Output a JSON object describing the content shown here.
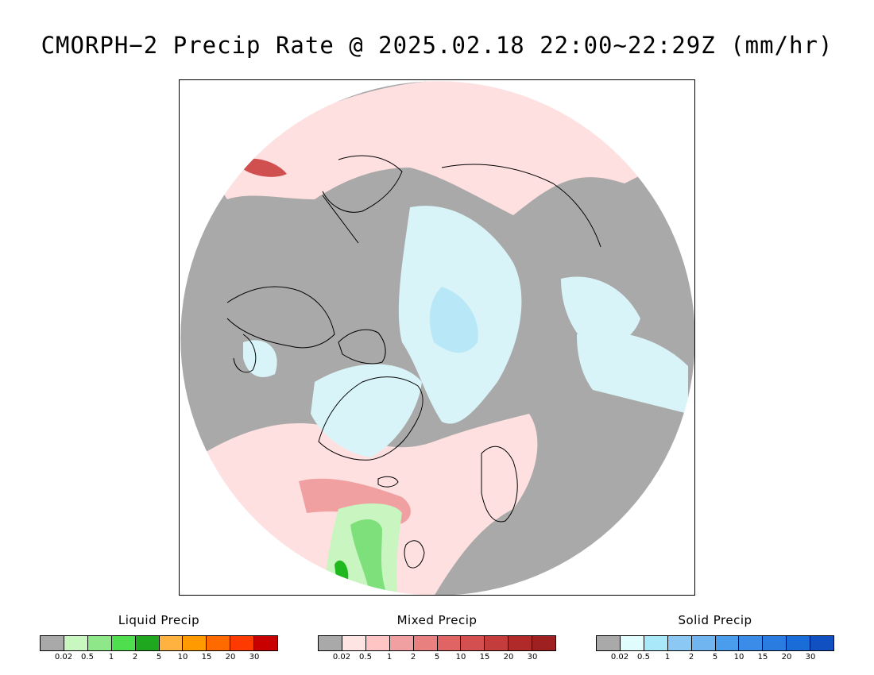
{
  "title": "CMORPH−2 Precip Rate @ 2025.02.18 22:00~22:29Z (mm/hr)",
  "map": {
    "projection": "north-polar-stereographic",
    "colors": {
      "no_precip": "#a9a9a9",
      "liquid_light": "#c8f5c0",
      "liquid_mid": "#7de07a",
      "liquid_heavy": "#1fb81f",
      "mixed_light": "#ffe0e0",
      "mixed_mid": "#f0a0a0",
      "mixed_heavy": "#d05050",
      "solid_light": "#d8f4f8",
      "solid_mid": "#b8e8f8",
      "coastline": "#000000"
    }
  },
  "legends": [
    {
      "label": "Liquid Precip",
      "colors": [
        "#a9a9a9",
        "#c8f7c0",
        "#8ee889",
        "#4ede4e",
        "#1fa81f",
        "#ffb23f",
        "#ff9a00",
        "#ff6a00",
        "#ff3a00",
        "#c80000"
      ],
      "ticks": [
        "0.02",
        "0.5",
        "1",
        "2",
        "5",
        "10",
        "15",
        "20",
        "30"
      ]
    },
    {
      "label": "Mixed Precip",
      "colors": [
        "#a9a9a9",
        "#ffe4e4",
        "#ffc4c4",
        "#f0a0a0",
        "#e88080",
        "#e06464",
        "#d45050",
        "#c43c3c",
        "#b02a2a",
        "#9e2020"
      ],
      "ticks": [
        "0.02",
        "0.5",
        "1",
        "2",
        "5",
        "10",
        "15",
        "20",
        "30"
      ]
    },
    {
      "label": "Solid Precip",
      "colors": [
        "#a9a9a9",
        "#e0fcfc",
        "#a8e8f8",
        "#8cc8f4",
        "#70b4f0",
        "#4a9cec",
        "#3a8ce8",
        "#2a7ce0",
        "#1a6cd8",
        "#1050c0"
      ],
      "ticks": [
        "0.02",
        "0.5",
        "1",
        "2",
        "5",
        "10",
        "15",
        "20",
        "30"
      ]
    }
  ]
}
